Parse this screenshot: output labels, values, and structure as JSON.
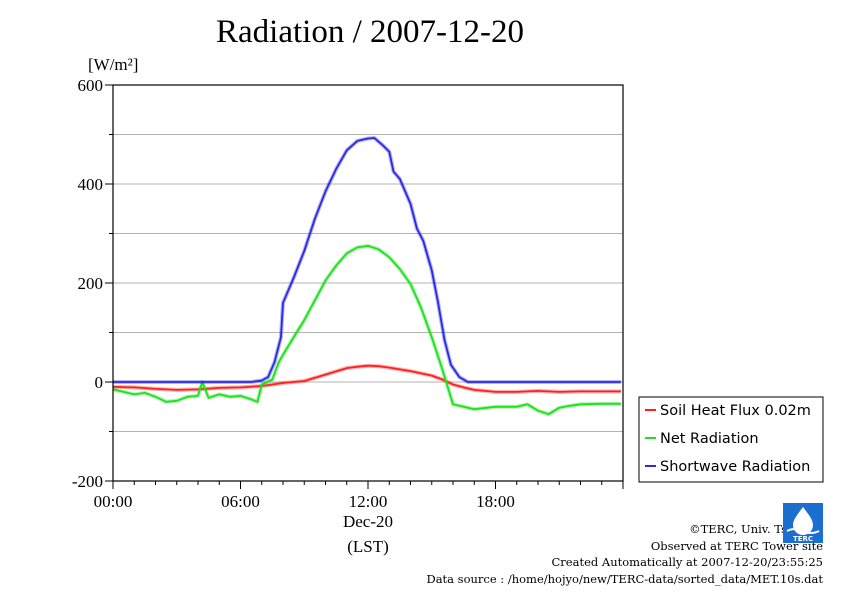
{
  "title": "Radiation / 2007-12-20",
  "chart_data": {
    "type": "line",
    "title": "Radiation / 2007-12-20",
    "ylabel_unit": "[W/m²]",
    "xlabel_date": "Dec-20",
    "xlabel": "(LST)",
    "ylim": [
      -200,
      600
    ],
    "xlim": [
      "00:00",
      "24:00"
    ],
    "y_ticks": [
      "600",
      "400",
      "200",
      "0",
      "-200"
    ],
    "x_ticks": [
      "00:00",
      "06:00",
      "12:00",
      "18:00"
    ],
    "grid": true,
    "legend_position": "right-bottom",
    "series": [
      {
        "name": "Soil Heat Flux 0.02m",
        "color": "#ff2020",
        "points": [
          [
            0,
            -10
          ],
          [
            1,
            -11
          ],
          [
            2,
            -14
          ],
          [
            3,
            -16
          ],
          [
            4,
            -15
          ],
          [
            5,
            -12
          ],
          [
            6,
            -11
          ],
          [
            7,
            -8
          ],
          [
            7.5,
            -5
          ],
          [
            8,
            -2
          ],
          [
            9,
            2
          ],
          [
            10,
            15
          ],
          [
            11,
            28
          ],
          [
            11.5,
            31
          ],
          [
            12,
            33
          ],
          [
            12.5,
            32
          ],
          [
            13,
            29
          ],
          [
            14,
            22
          ],
          [
            15,
            13
          ],
          [
            15.5,
            5
          ],
          [
            16,
            -5
          ],
          [
            16.5,
            -11
          ],
          [
            17,
            -16
          ],
          [
            18,
            -20
          ],
          [
            19,
            -20
          ],
          [
            20,
            -18
          ],
          [
            21,
            -20
          ],
          [
            22,
            -19
          ],
          [
            23,
            -19
          ],
          [
            23.9,
            -19
          ]
        ]
      },
      {
        "name": "Net Radiation",
        "color": "#20e020",
        "points": [
          [
            0,
            -15
          ],
          [
            0.5,
            -20
          ],
          [
            1,
            -25
          ],
          [
            1.5,
            -22
          ],
          [
            2,
            -30
          ],
          [
            2.5,
            -40
          ],
          [
            3,
            -38
          ],
          [
            3.5,
            -30
          ],
          [
            4,
            -28
          ],
          [
            4.2,
            0
          ],
          [
            4.5,
            -32
          ],
          [
            5,
            -25
          ],
          [
            5.5,
            -30
          ],
          [
            6,
            -28
          ],
          [
            6.5,
            -35
          ],
          [
            6.8,
            -40
          ],
          [
            7,
            -5
          ],
          [
            7.5,
            5
          ],
          [
            7.8,
            40
          ],
          [
            8,
            55
          ],
          [
            8.5,
            90
          ],
          [
            9,
            125
          ],
          [
            9.5,
            165
          ],
          [
            10,
            205
          ],
          [
            10.5,
            235
          ],
          [
            11,
            260
          ],
          [
            11.5,
            272
          ],
          [
            12,
            275
          ],
          [
            12.5,
            268
          ],
          [
            13,
            252
          ],
          [
            13.5,
            228
          ],
          [
            14,
            198
          ],
          [
            14.5,
            150
          ],
          [
            15,
            90
          ],
          [
            15.5,
            25
          ],
          [
            16,
            -45
          ],
          [
            16.5,
            -50
          ],
          [
            17,
            -55
          ],
          [
            18,
            -50
          ],
          [
            19,
            -50
          ],
          [
            19.5,
            -45
          ],
          [
            20,
            -58
          ],
          [
            20.5,
            -65
          ],
          [
            21,
            -52
          ],
          [
            21.5,
            -48
          ],
          [
            22,
            -45
          ],
          [
            23,
            -44
          ],
          [
            23.9,
            -44
          ]
        ]
      },
      {
        "name": "Shortwave Radiation",
        "color": "#2a2ae0",
        "points": [
          [
            0,
            0
          ],
          [
            6.5,
            0
          ],
          [
            7,
            3
          ],
          [
            7.3,
            10
          ],
          [
            7.6,
            40
          ],
          [
            7.9,
            90
          ],
          [
            8,
            160
          ],
          [
            8.5,
            210
          ],
          [
            9,
            265
          ],
          [
            9.5,
            330
          ],
          [
            10,
            385
          ],
          [
            10.5,
            430
          ],
          [
            11,
            468
          ],
          [
            11.5,
            487
          ],
          [
            12,
            492
          ],
          [
            12.3,
            493
          ],
          [
            12.7,
            478
          ],
          [
            13,
            465
          ],
          [
            13.2,
            425
          ],
          [
            13.5,
            410
          ],
          [
            14,
            360
          ],
          [
            14.3,
            310
          ],
          [
            14.6,
            285
          ],
          [
            15,
            225
          ],
          [
            15.3,
            160
          ],
          [
            15.6,
            85
          ],
          [
            15.9,
            35
          ],
          [
            16.3,
            10
          ],
          [
            16.7,
            0
          ],
          [
            18,
            0
          ],
          [
            20,
            0
          ],
          [
            22,
            0
          ],
          [
            23.9,
            0
          ]
        ]
      }
    ]
  },
  "credits": {
    "line1": "©TERC, Univ. Tsukuba",
    "line2": "Observed at TERC Tower site",
    "line3": "Created Automatically at 2007-12-20/23:55:25",
    "line4": "Data source : /home/hojyo/new/TERC-data/sorted_data/MET.10s.dat"
  },
  "logo": {
    "text": "TERC",
    "color": "#1a6fd0"
  }
}
